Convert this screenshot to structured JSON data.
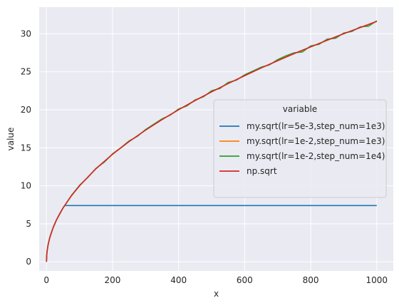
{
  "chart_data": {
    "type": "line",
    "title": "",
    "xlabel": "x",
    "ylabel": "value",
    "xlim": [
      -22,
      1050
    ],
    "ylim": [
      -1.2,
      33.5
    ],
    "xticks": [
      0,
      200,
      400,
      600,
      800,
      1000
    ],
    "yticks": [
      0,
      5,
      10,
      15,
      20,
      25,
      30
    ],
    "grid": true,
    "background": "#eaeaf2",
    "legend": {
      "title": "variable",
      "placement": "center-right",
      "entries": [
        {
          "label": "my.sqrt(lr=5e-3,step_num=1e3)",
          "color": "#1f77b4"
        },
        {
          "label": "my.sqrt(lr=1e-2,step_num=1e3)",
          "color": "#ff7f0e"
        },
        {
          "label": "my.sqrt(lr=1e-2,step_num=1e4)",
          "color": "#2ca02c"
        },
        {
          "label": "np.sqrt",
          "color": "#d62728"
        }
      ]
    },
    "series": [
      {
        "name": "my.sqrt(lr=5e-3,step_num=1e3)",
        "color": "#1f77b4",
        "x": [
          0,
          1,
          2,
          5,
          10,
          15,
          20,
          25,
          30,
          35,
          40,
          45,
          50,
          55,
          100,
          200,
          300,
          400,
          500,
          600,
          700,
          800,
          900,
          1000
        ],
        "y": [
          0,
          1,
          1.41,
          2.24,
          3.16,
          3.87,
          4.47,
          5.0,
          5.48,
          5.92,
          6.32,
          6.71,
          7.07,
          7.4,
          7.4,
          7.4,
          7.4,
          7.4,
          7.4,
          7.4,
          7.4,
          7.4,
          7.4,
          7.4
        ]
      },
      {
        "name": "my.sqrt(lr=1e-2,step_num=1e3)",
        "color": "#ff7f0e",
        "x": [
          0,
          1,
          2,
          5,
          10,
          20,
          30,
          50,
          75,
          100,
          150,
          200,
          250,
          300,
          350,
          400,
          450,
          500,
          550,
          600,
          650,
          700,
          750,
          800,
          850,
          900,
          950,
          1000
        ],
        "y": [
          0,
          1,
          1.41,
          2.24,
          3.16,
          4.47,
          5.48,
          7.07,
          8.66,
          10.0,
          12.25,
          14.14,
          15.81,
          17.32,
          18.71,
          20.0,
          21.21,
          22.36,
          23.45,
          24.49,
          25.5,
          26.46,
          27.39,
          28.28,
          29.15,
          30.0,
          30.82,
          31.62
        ]
      },
      {
        "name": "my.sqrt(lr=1e-2,step_num=1e4)",
        "color": "#2ca02c",
        "x": [
          0,
          1,
          2,
          5,
          10,
          20,
          30,
          50,
          75,
          100,
          125,
          150,
          175,
          200,
          225,
          250,
          275,
          300,
          325,
          350,
          375,
          400,
          425,
          450,
          475,
          500,
          525,
          550,
          575,
          600,
          625,
          650,
          675,
          700,
          725,
          750,
          775,
          800,
          825,
          850,
          875,
          900,
          925,
          950,
          975,
          1000
        ],
        "y": [
          0,
          1,
          1.41,
          2.24,
          3.16,
          4.47,
          5.48,
          7.07,
          8.7,
          10.05,
          11.1,
          12.3,
          13.1,
          14.2,
          15.0,
          15.9,
          16.5,
          17.4,
          18.1,
          18.8,
          19.3,
          20.1,
          20.5,
          21.3,
          21.7,
          22.5,
          22.8,
          23.6,
          23.9,
          24.6,
          25.1,
          25.6,
          25.9,
          26.6,
          27.1,
          27.5,
          27.6,
          28.4,
          28.6,
          29.3,
          29.4,
          30.1,
          30.3,
          30.9,
          31.0,
          31.7
        ]
      },
      {
        "name": "np.sqrt",
        "color": "#d62728",
        "x": [
          0,
          1,
          2,
          5,
          10,
          20,
          30,
          50,
          75,
          100,
          150,
          200,
          250,
          300,
          350,
          400,
          450,
          500,
          550,
          600,
          650,
          700,
          750,
          800,
          850,
          900,
          950,
          1000
        ],
        "y": [
          0,
          1,
          1.41,
          2.24,
          3.16,
          4.47,
          5.48,
          7.07,
          8.66,
          10.0,
          12.25,
          14.14,
          15.81,
          17.32,
          18.71,
          20.0,
          21.21,
          22.36,
          23.45,
          24.49,
          25.5,
          26.46,
          27.39,
          28.28,
          29.15,
          30.0,
          30.82,
          31.62
        ]
      }
    ]
  }
}
